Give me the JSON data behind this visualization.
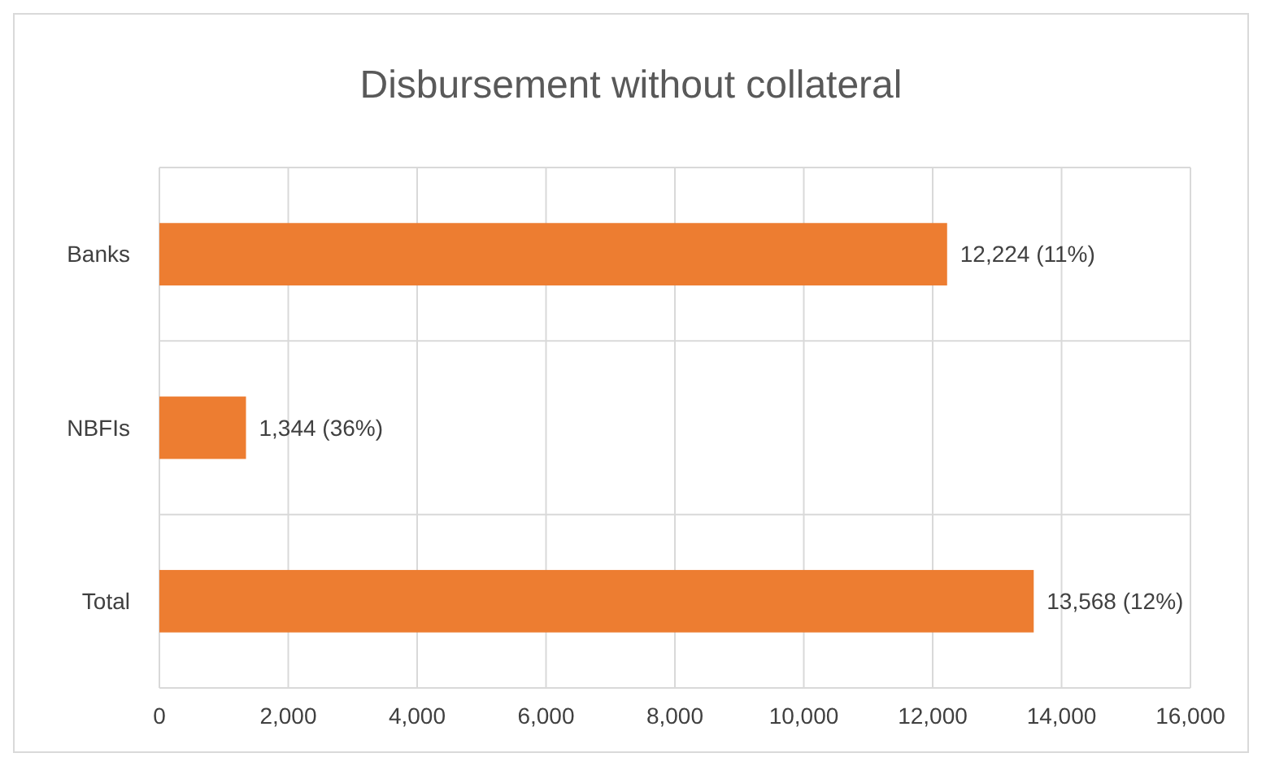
{
  "chart_data": {
    "type": "bar",
    "orientation": "horizontal",
    "title": "Disbursement without collateral",
    "categories": [
      "Banks",
      "NBFIs",
      "Total"
    ],
    "values": [
      12224,
      1344,
      13568
    ],
    "value_labels": [
      "12,224 (11%)",
      "1,344 (36%)",
      "13,568 (12%)"
    ],
    "color": "#ed7d31",
    "xlim": [
      0,
      16000
    ],
    "xticks": [
      0,
      {
        "value": 2000,
        "label": "2,000"
      },
      {
        "value": 4000,
        "label": "4,000"
      },
      {
        "value": 6000,
        "label": "6,000"
      },
      {
        "value": 8000,
        "label": "8,000"
      },
      {
        "value": 10000,
        "label": "10,000"
      },
      {
        "value": 12000,
        "label": "12,000"
      },
      {
        "value": 14000,
        "label": "14,000"
      },
      {
        "value": 16000,
        "label": "16,000"
      }
    ],
    "grid": true
  }
}
